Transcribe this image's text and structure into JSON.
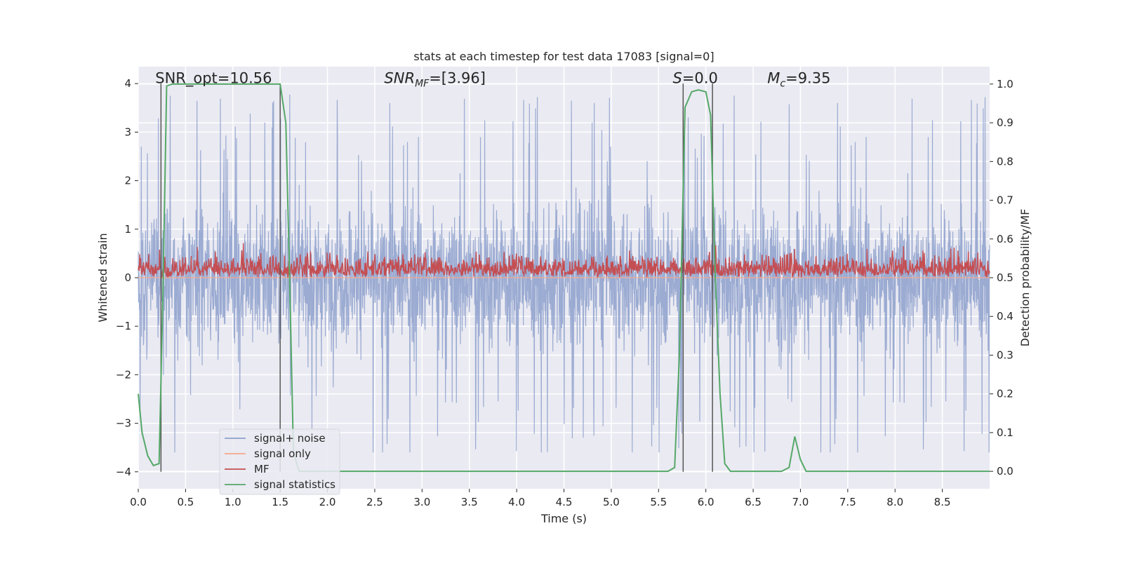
{
  "chart_data": {
    "type": "line",
    "title": "stats at each timestep for test data 17083 [signal=0]",
    "xlabel": "Time (s)",
    "ylabel": "Whitened strain",
    "y2label": "Detection probability/MF",
    "xlim": [
      0.0,
      9.0
    ],
    "ylim": [
      -4.35,
      4.35
    ],
    "y2lim": [
      -0.045,
      1.045
    ],
    "xticks": [
      0.0,
      0.5,
      1.0,
      1.5,
      2.0,
      2.5,
      3.0,
      3.5,
      4.0,
      4.5,
      5.0,
      5.5,
      6.0,
      6.5,
      7.0,
      7.5,
      8.0,
      8.5
    ],
    "xtick_labels": [
      "0.0",
      "0.5",
      "1.0",
      "1.5",
      "2.0",
      "2.5",
      "3.0",
      "3.5",
      "4.0",
      "4.5",
      "5.0",
      "5.5",
      "6.0",
      "6.5",
      "7.0",
      "7.5",
      "8.0",
      "8.5"
    ],
    "yticks": [
      -4,
      -3,
      -2,
      -1,
      0,
      1,
      2,
      3,
      4
    ],
    "ytick_labels": [
      "−4",
      "−3",
      "−2",
      "−1",
      "0",
      "1",
      "2",
      "3",
      "4"
    ],
    "y2ticks": [
      0.0,
      0.1,
      0.2,
      0.3,
      0.4,
      0.5,
      0.6,
      0.7,
      0.8,
      0.9,
      1.0
    ],
    "y2tick_labels": [
      "0.0",
      "0.1",
      "0.2",
      "0.3",
      "0.4",
      "0.5",
      "0.6",
      "0.7",
      "0.8",
      "0.9",
      "1.0"
    ],
    "annotations": [
      {
        "text": "SNR_opt=10.56",
        "x": 0.18,
        "y": 4.1
      },
      {
        "text": "SNR_MF=[3.96]",
        "x": 2.6,
        "y": 4.1
      },
      {
        "text": "S=0.0",
        "x": 5.65,
        "y": 4.1
      },
      {
        "text": "M_c=9.35",
        "x": 6.65,
        "y": 4.1
      }
    ],
    "vlines": [
      {
        "x": 0.24,
        "y_top": 4.0,
        "y_bottom": -4.0
      },
      {
        "x": 1.5,
        "y_top": 4.0,
        "y_bottom": -4.0
      },
      {
        "x": 5.76,
        "y_top": 4.0,
        "y_bottom": -4.0
      },
      {
        "x": 6.07,
        "y_top": 4.0,
        "y_bottom": -4.0
      }
    ],
    "legend": {
      "location": "lower-left",
      "entries": [
        {
          "label": "signal+ noise",
          "color": "#8da0cb"
        },
        {
          "label": "signal only",
          "color": "#f5a78a"
        },
        {
          "label": "MF",
          "color": "#c44e52"
        },
        {
          "label": "signal statistics",
          "color": "#55a868"
        }
      ]
    },
    "series": [
      {
        "name": "signal+ noise",
        "axis": "left",
        "color": "#92a4ce",
        "style": "dense noise",
        "band_center": 0.0,
        "band_typical": [
          -2.0,
          2.3
        ],
        "band_extremes": [
          -3.6,
          4.0
        ]
      },
      {
        "name": "signal only",
        "axis": "left",
        "color": "#f5a78a",
        "x": [
          0,
          9
        ],
        "y": [
          0,
          0
        ]
      },
      {
        "name": "MF",
        "axis": "right",
        "color": "#c44e52",
        "style": "dense noise",
        "band_range": [
          0.5,
          0.62
        ]
      },
      {
        "name": "signal statistics",
        "axis": "right",
        "color": "#55a868",
        "x": [
          0.0,
          0.04,
          0.1,
          0.16,
          0.22,
          0.26,
          0.3,
          0.36,
          0.5,
          1.0,
          1.4,
          1.5,
          1.56,
          1.6,
          1.64,
          1.7,
          2.0,
          3.0,
          4.0,
          5.0,
          5.6,
          5.67,
          5.72,
          5.78,
          5.85,
          5.92,
          6.0,
          6.05,
          6.1,
          6.15,
          6.2,
          6.26,
          6.35,
          6.8,
          6.88,
          6.94,
          7.0,
          7.06,
          7.2,
          8.0,
          9.0
        ],
        "y": [
          0.2,
          0.1,
          0.04,
          0.015,
          0.02,
          0.45,
          0.995,
          1.0,
          1.0,
          1.0,
          1.0,
          1.0,
          0.9,
          0.5,
          0.05,
          0.0,
          0.0,
          0.0,
          0.0,
          0.0,
          0.0,
          0.01,
          0.3,
          0.94,
          0.98,
          0.985,
          0.98,
          0.92,
          0.5,
          0.2,
          0.02,
          0.0,
          0.0,
          0.0,
          0.01,
          0.09,
          0.03,
          0.0,
          0.0,
          0.0,
          0.0
        ]
      }
    ]
  }
}
